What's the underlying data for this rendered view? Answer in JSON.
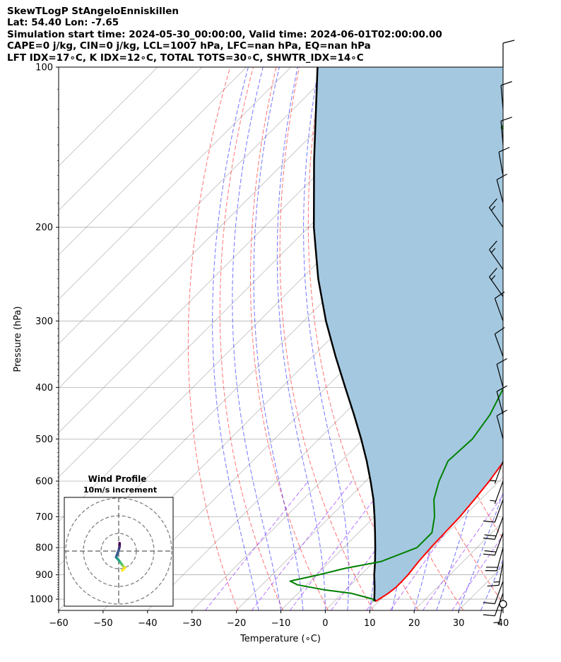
{
  "header": {
    "line1": "SkewTLogP StAngeloEnniskillen",
    "line2": "Lat: 54.40   Lon: -7.65",
    "line3": "Simulation start time: 2024-05-30_00:00:00, Valid time: 2024-06-01T02:00:00.00",
    "line4": "CAPE=0 j/kg, CIN=0 j/kg, LCL=1007 hPa, LFC=nan hPa, EQ=nan hPa",
    "line5": "LFT IDX=17∘C, K IDX=12∘C, TOTAL TOTS=30∘C, SHWTR_IDX=14∘C"
  },
  "chart_data": {
    "type": "line",
    "subtype": "skew-t log-p diagram",
    "xlabel": "Temperature (∘C)",
    "ylabel": "Pressure (hPa)",
    "xlim": [
      -60,
      40
    ],
    "ylim": [
      1050,
      100
    ],
    "y_scale": "log",
    "x_ticks": [
      -60,
      -50,
      -40,
      -30,
      -20,
      -10,
      0,
      10,
      20,
      30,
      40
    ],
    "x_tick_labels": [
      "−60",
      "−50",
      "−40",
      "−30",
      "−20",
      "−10",
      "0",
      "10",
      "20",
      "30",
      "40"
    ],
    "y_ticks": [
      100,
      200,
      300,
      400,
      500,
      600,
      700,
      800,
      900,
      1000
    ],
    "grid": true,
    "colors": {
      "temperature": "#ff0000",
      "dewpoint": "#008000",
      "parcel": "#000000",
      "cin_cape_shading": "#a4c8e0",
      "dry_adiabat": "#ff0000",
      "moist_adiabat": "#0000ff",
      "mixing_ratio": "#7f00ff",
      "isotherm": "#808080"
    },
    "series": [],
    "temperature_profile": [
      [
        1010,
        9.3
      ],
      [
        1000,
        9.6
      ],
      [
        975,
        10.3
      ],
      [
        950,
        10.7
      ],
      [
        925,
        10.7
      ],
      [
        900,
        10.6
      ],
      [
        850,
        10.0
      ],
      [
        800,
        9.6
      ],
      [
        750,
        9.4
      ],
      [
        700,
        9.2
      ],
      [
        650,
        8.6
      ],
      [
        600,
        7.8
      ],
      [
        550,
        6.6
      ],
      [
        500,
        5.0
      ],
      [
        450,
        3.0
      ],
      [
        400,
        1.4
      ],
      [
        350,
        -1.8
      ],
      [
        300,
        -5.8
      ],
      [
        275,
        -8.8
      ],
      [
        250,
        -11.6
      ],
      [
        225,
        -14.6
      ],
      [
        215,
        -17.0
      ],
      [
        200,
        -19.0
      ],
      [
        180,
        -20.0
      ],
      [
        170,
        -21.5
      ],
      [
        160,
        -24.0
      ],
      [
        150,
        -29.0
      ],
      [
        140,
        -36.0
      ],
      [
        130,
        -44.0
      ],
      [
        120,
        -50.5
      ],
      [
        110,
        -53.8
      ],
      [
        100,
        -56.5
      ]
    ],
    "dewpoint_profile": [
      [
        1010,
        8.8
      ],
      [
        1000,
        8.2
      ],
      [
        975,
        2.0
      ],
      [
        960,
        -5.0
      ],
      [
        940,
        -12.0
      ],
      [
        925,
        -14.5
      ],
      [
        900,
        -9.5
      ],
      [
        875,
        -5.0
      ],
      [
        850,
        1.5
      ],
      [
        800,
        6.5
      ],
      [
        750,
        6.5
      ],
      [
        700,
        3.5
      ],
      [
        650,
        -0.5
      ],
      [
        600,
        -3.5
      ],
      [
        550,
        -6.0
      ],
      [
        500,
        -5.5
      ],
      [
        450,
        -7.0
      ],
      [
        400,
        -10.0
      ],
      [
        350,
        -16.0
      ],
      [
        300,
        -23.0
      ],
      [
        275,
        -27.0
      ],
      [
        250,
        -27.0
      ],
      [
        225,
        -31.0
      ],
      [
        210,
        -36.0
      ],
      [
        195,
        -40.0
      ],
      [
        180,
        -44.0
      ],
      [
        170,
        -47.0
      ],
      [
        160,
        -51.0
      ],
      [
        150,
        -57.0
      ],
      [
        140,
        -61.0
      ],
      [
        130,
        -69.0
      ],
      [
        120,
        -70.0
      ],
      [
        110,
        -72.0
      ],
      [
        100,
        -73.0
      ]
    ],
    "parcel_profile": [
      [
        1010,
        9.3
      ],
      [
        1000,
        8.5
      ],
      [
        950,
        5.9
      ],
      [
        900,
        3.0
      ],
      [
        850,
        0.2
      ],
      [
        800,
        -2.9
      ],
      [
        750,
        -6.3
      ],
      [
        700,
        -10.0
      ],
      [
        650,
        -14.1
      ],
      [
        600,
        -18.9
      ],
      [
        550,
        -24.3
      ],
      [
        500,
        -30.5
      ],
      [
        450,
        -37.6
      ],
      [
        400,
        -45.7
      ],
      [
        350,
        -54.8
      ],
      [
        300,
        -65.0
      ],
      [
        250,
        -76.2
      ],
      [
        200,
        -88.8
      ],
      [
        150,
        -103.7
      ],
      [
        100,
        -124.0
      ]
    ],
    "wind_barbs": [
      {
        "p": 1010,
        "dir": 190,
        "speed_kt": 5
      },
      {
        "p": 975,
        "dir": 200,
        "speed_kt": 10
      },
      {
        "p": 925,
        "dir": 200,
        "speed_kt": 10
      },
      {
        "p": 850,
        "dir": 190,
        "speed_kt": 15
      },
      {
        "p": 800,
        "dir": 195,
        "speed_kt": 20
      },
      {
        "p": 750,
        "dir": 200,
        "speed_kt": 20
      },
      {
        "p": 700,
        "dir": 200,
        "speed_kt": 20
      },
      {
        "p": 650,
        "dir": 200,
        "speed_kt": 10
      },
      {
        "p": 600,
        "dir": 200,
        "speed_kt": 5
      },
      {
        "p": 550,
        "dir": 200,
        "speed_kt": 5
      },
      {
        "p": 500,
        "dir": 345,
        "speed_kt": 10
      },
      {
        "p": 450,
        "dir": 345,
        "speed_kt": 10
      },
      {
        "p": 400,
        "dir": 345,
        "speed_kt": 10
      },
      {
        "p": 350,
        "dir": 340,
        "speed_kt": 10
      },
      {
        "p": 300,
        "dir": 340,
        "speed_kt": 10
      },
      {
        "p": 270,
        "dir": 325,
        "speed_kt": 15
      },
      {
        "p": 240,
        "dir": 325,
        "speed_kt": 15
      },
      {
        "p": 200,
        "dir": 325,
        "speed_kt": 15
      },
      {
        "p": 180,
        "dir": 345,
        "speed_kt": 10
      },
      {
        "p": 160,
        "dir": 350,
        "speed_kt": 10
      },
      {
        "p": 140,
        "dir": 355,
        "speed_kt": 10
      },
      {
        "p": 120,
        "dir": 355,
        "speed_kt": 10
      },
      {
        "p": 100,
        "dir": 0,
        "speed_kt": 10
      }
    ],
    "hodograph": {
      "title": "Wind Profile",
      "subtitle": "10m/s increment",
      "points": [
        [
          0.5,
          4.5
        ],
        [
          0.5,
          2.5
        ],
        [
          0.0,
          0.5
        ],
        [
          -1.5,
          -3.5
        ],
        [
          -0.5,
          -4.5
        ],
        [
          1.0,
          -6.5
        ],
        [
          2.5,
          -8.5
        ],
        [
          3.5,
          -9.5
        ],
        [
          2.0,
          -11.0
        ]
      ]
    }
  }
}
